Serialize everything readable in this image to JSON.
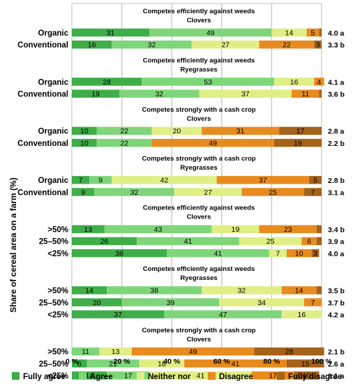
{
  "chart_data": {
    "type": "bar",
    "stacked": true,
    "orientation": "horizontal",
    "ylabel": "Share of cereal area on a farm (%)",
    "xlim": [
      0,
      100
    ],
    "x_ticks": [
      "0 %",
      "20 %",
      "40 %",
      "60 %",
      "80 %",
      "100 %"
    ],
    "grid": true,
    "legend_position": "bottom",
    "series_names": [
      "Fully agree",
      "Agree",
      "Neither nor",
      "Disagree",
      "Fully disagree"
    ],
    "colors": [
      "#3fae49",
      "#7fd67a",
      "#e0ee86",
      "#e88b1f",
      "#a4621a"
    ],
    "groups": [
      {
        "header": [
          "Competes efficiently against weeds",
          "Clovers"
        ],
        "rows": [
          {
            "category": "Organic",
            "values": [
              31,
              49,
              14,
              5,
              1
            ],
            "score": "4.0 a"
          },
          {
            "category": "Conventional",
            "values": [
              16,
              32,
              27,
              22,
              3
            ],
            "score": "3.3 b"
          }
        ]
      },
      {
        "header": [
          "Competes efficiently against weeds",
          "Ryegrasses"
        ],
        "rows": [
          {
            "category": "Organic",
            "values": [
              28,
              53,
              16,
              4,
              0
            ],
            "score": "4.1 a"
          },
          {
            "category": "Conventional",
            "values": [
              19,
              32,
              37,
              11,
              1
            ],
            "score": "3.6 b"
          }
        ]
      },
      {
        "header": [
          "Competes strongly with a cash crop",
          "Clovers"
        ],
        "rows": [
          {
            "category": "Organic",
            "values": [
              10,
              22,
              20,
              31,
              17
            ],
            "score": "2.8 a"
          },
          {
            "category": "Conventional",
            "values": [
              10,
              22,
              0,
              49,
              19
            ],
            "score": "2.2 b"
          }
        ]
      },
      {
        "header": [
          "Competes strongly with a cash crop",
          "Ryegrasses"
        ],
        "rows": [
          {
            "category": "Organic",
            "values": [
              7,
              9,
              42,
              37,
              5
            ],
            "score": "2.8 b"
          },
          {
            "category": "Conventional",
            "values": [
              9,
              32,
              27,
              25,
              7
            ],
            "score": "3.1 a"
          }
        ]
      },
      {
        "header": [
          "Competes efficiently against weeds",
          "Clovers"
        ],
        "rows": [
          {
            "category": ">50%",
            "values": [
              13,
              43,
              19,
              23,
              2
            ],
            "score": "3.4 b"
          },
          {
            "category": "25–50%",
            "values": [
              26,
              41,
              25,
              6,
              2
            ],
            "score": "3.9 a"
          },
          {
            "category": "<25%",
            "values": [
              38,
              41,
              7,
              10,
              3
            ],
            "score": "4.0 a"
          }
        ]
      },
      {
        "header": [
          "Competes efficiently against weeds",
          "Ryegrasses"
        ],
        "rows": [
          {
            "category": ">50%",
            "values": [
              14,
              38,
              32,
              14,
              2
            ],
            "score": "3.5 b"
          },
          {
            "category": "25–50%",
            "values": [
              20,
              39,
              34,
              7,
              0
            ],
            "score": "3.7 b"
          },
          {
            "category": "<25%",
            "values": [
              37,
              47,
              16,
              0,
              0
            ],
            "score": "4.2 a"
          }
        ]
      },
      {
        "header": [
          "Competes strongly with a cash crop",
          "Clovers"
        ],
        "rows": [
          {
            "category": ">50%",
            "values": [
              0,
              11,
              13,
              49,
              28
            ],
            "score": "2.1 b"
          },
          {
            "category": "25–50%",
            "values": [
              6,
              21,
              18,
              41,
              15
            ],
            "score": "2.6 a"
          },
          {
            "category": "<25%",
            "values": [
              14,
              17,
              41,
              17,
              10
            ],
            "score": "3.1 a"
          }
        ]
      }
    ]
  }
}
